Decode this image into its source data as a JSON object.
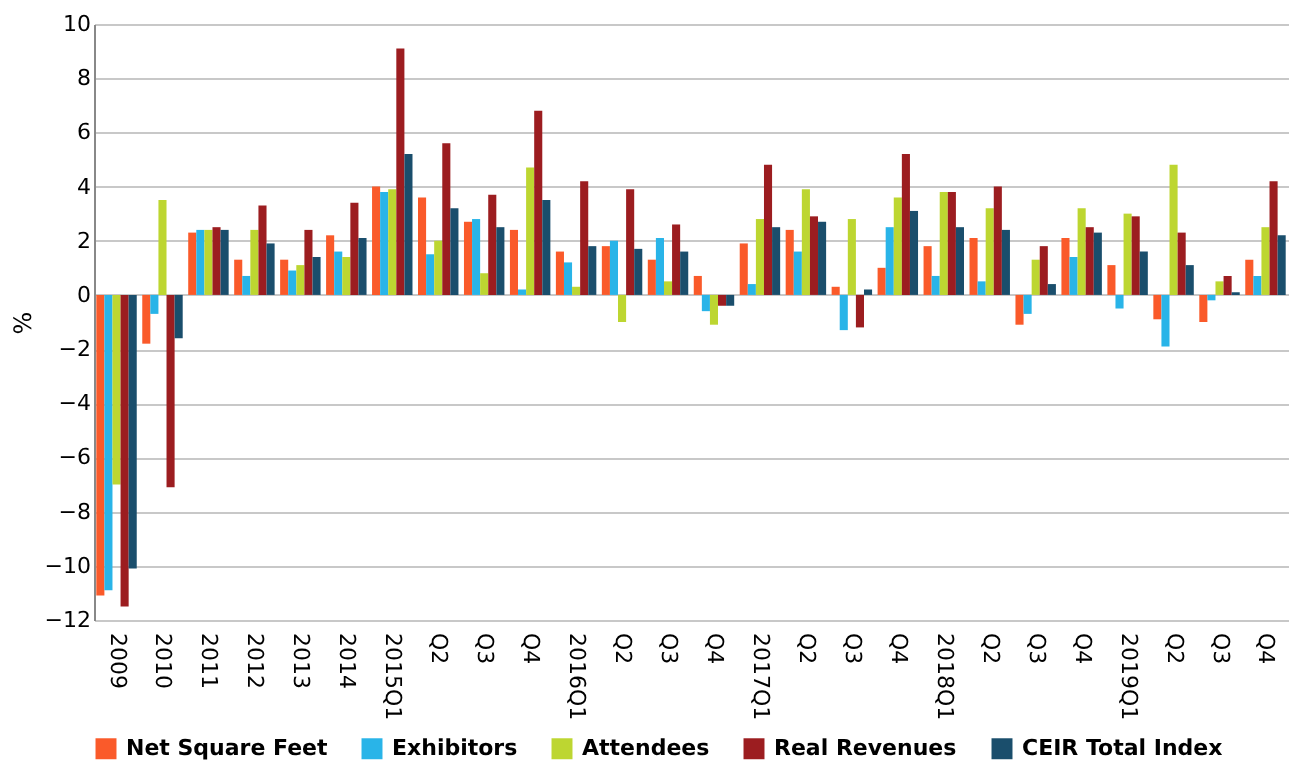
{
  "chart_data": {
    "type": "bar",
    "ylabel": "%",
    "categories": [
      "2009",
      "2010",
      "2011",
      "2012",
      "2013",
      "2014",
      "2015Q1",
      "Q2",
      "Q3",
      "Q4",
      "2016Q1",
      "Q2",
      "Q3",
      "Q4",
      "2017Q1",
      "Q2",
      "Q3",
      "Q4",
      "2018Q1",
      "Q2",
      "Q3",
      "Q4",
      "2019Q1",
      "Q2",
      "Q3",
      "Q4"
    ],
    "series": [
      {
        "name": "Net Square Feet",
        "color": "#fa5a2a",
        "values": [
          -11.1,
          -1.8,
          2.3,
          1.3,
          1.3,
          2.2,
          4.0,
          3.6,
          2.7,
          2.4,
          1.6,
          1.8,
          1.3,
          0.7,
          1.9,
          2.4,
          0.3,
          1.0,
          1.8,
          2.1,
          -1.1,
          2.1,
          1.1,
          -0.9,
          -1.0,
          1.3
        ]
      },
      {
        "name": "Exhibitors",
        "color": "#29b4e8",
        "values": [
          -10.9,
          -0.7,
          2.4,
          0.7,
          0.9,
          1.6,
          3.8,
          1.5,
          2.8,
          0.2,
          1.2,
          2.0,
          2.1,
          -0.6,
          0.4,
          1.6,
          -1.3,
          2.5,
          0.7,
          0.5,
          -0.7,
          1.4,
          -0.5,
          -1.9,
          -0.2,
          0.7
        ]
      },
      {
        "name": "Attendees",
        "color": "#bdd631",
        "values": [
          -7.0,
          3.5,
          2.4,
          2.4,
          1.1,
          1.4,
          3.9,
          2.0,
          0.8,
          4.7,
          0.3,
          -1.0,
          0.5,
          -1.1,
          2.8,
          3.9,
          2.8,
          3.6,
          3.8,
          3.2,
          1.3,
          3.2,
          3.0,
          4.8,
          0.5,
          2.5
        ]
      },
      {
        "name": "Real Revenues",
        "color": "#9c1d20",
        "values": [
          -11.5,
          -7.1,
          2.5,
          3.3,
          2.4,
          3.4,
          9.1,
          5.6,
          3.7,
          6.8,
          4.2,
          3.9,
          2.6,
          -0.4,
          4.8,
          2.9,
          -1.2,
          5.2,
          3.8,
          4.0,
          1.8,
          2.5,
          2.9,
          2.3,
          0.7,
          4.2
        ]
      },
      {
        "name": "CEIR Total Index",
        "color": "#1a4e6c",
        "values": [
          -10.1,
          -1.6,
          2.4,
          1.9,
          1.4,
          2.1,
          5.2,
          3.2,
          2.5,
          3.5,
          1.8,
          1.7,
          1.6,
          -0.4,
          2.5,
          2.7,
          0.2,
          3.1,
          2.5,
          2.4,
          0.4,
          2.3,
          1.6,
          1.1,
          0.1,
          2.2
        ]
      }
    ],
    "ylim": [
      -12,
      10
    ],
    "yticks": [
      -12,
      -10,
      -8,
      -6,
      -4,
      -2,
      0,
      2,
      4,
      6,
      8,
      10
    ],
    "grid": "y",
    "legend": "bottom"
  }
}
